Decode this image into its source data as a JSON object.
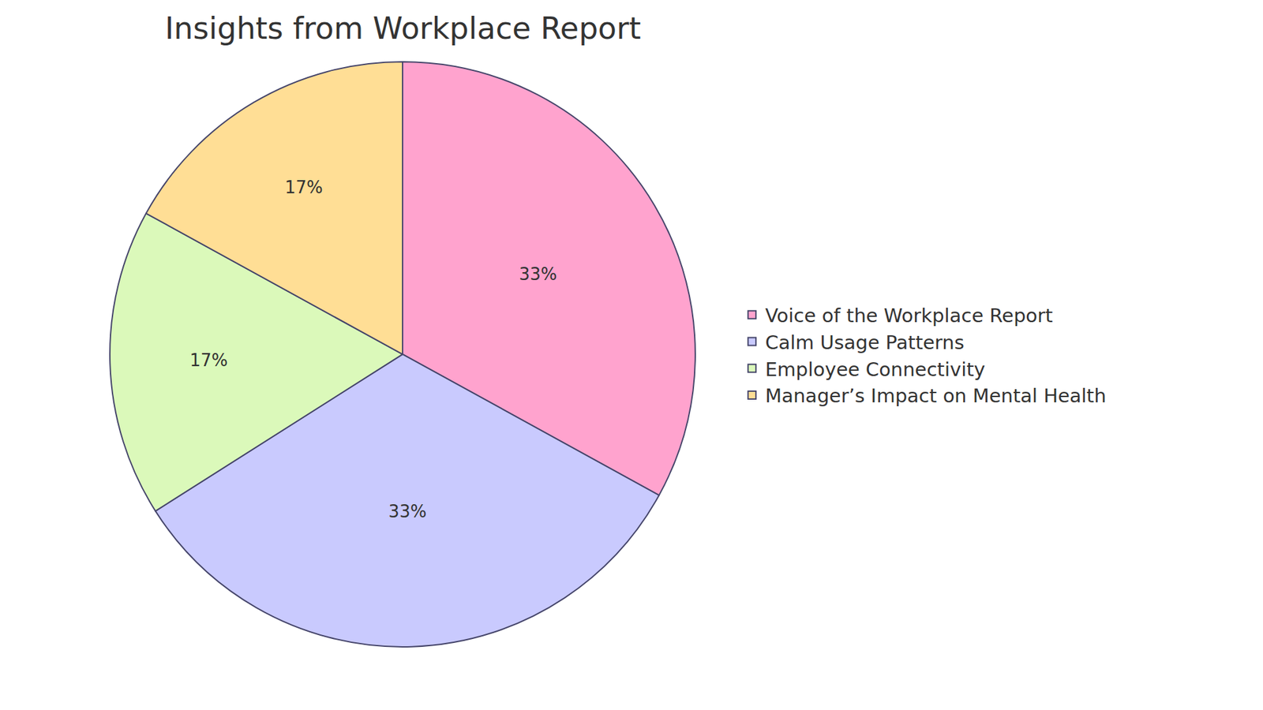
{
  "chart_data": {
    "type": "pie",
    "title": "Insights from Workplace Report",
    "categories": [
      "Voice of the Workplace Report",
      "Calm Usage Patterns",
      "Employee Connectivity",
      "Manager’s Impact on Mental Health"
    ],
    "values": [
      33,
      33,
      17,
      17
    ],
    "value_labels": [
      "33%",
      "33%",
      "17%",
      "17%"
    ],
    "colors": [
      "#FFA3CE",
      "#C9CAFE",
      "#DBF9BA",
      "#FFDE95"
    ],
    "data_labels": true,
    "legend": "right"
  }
}
